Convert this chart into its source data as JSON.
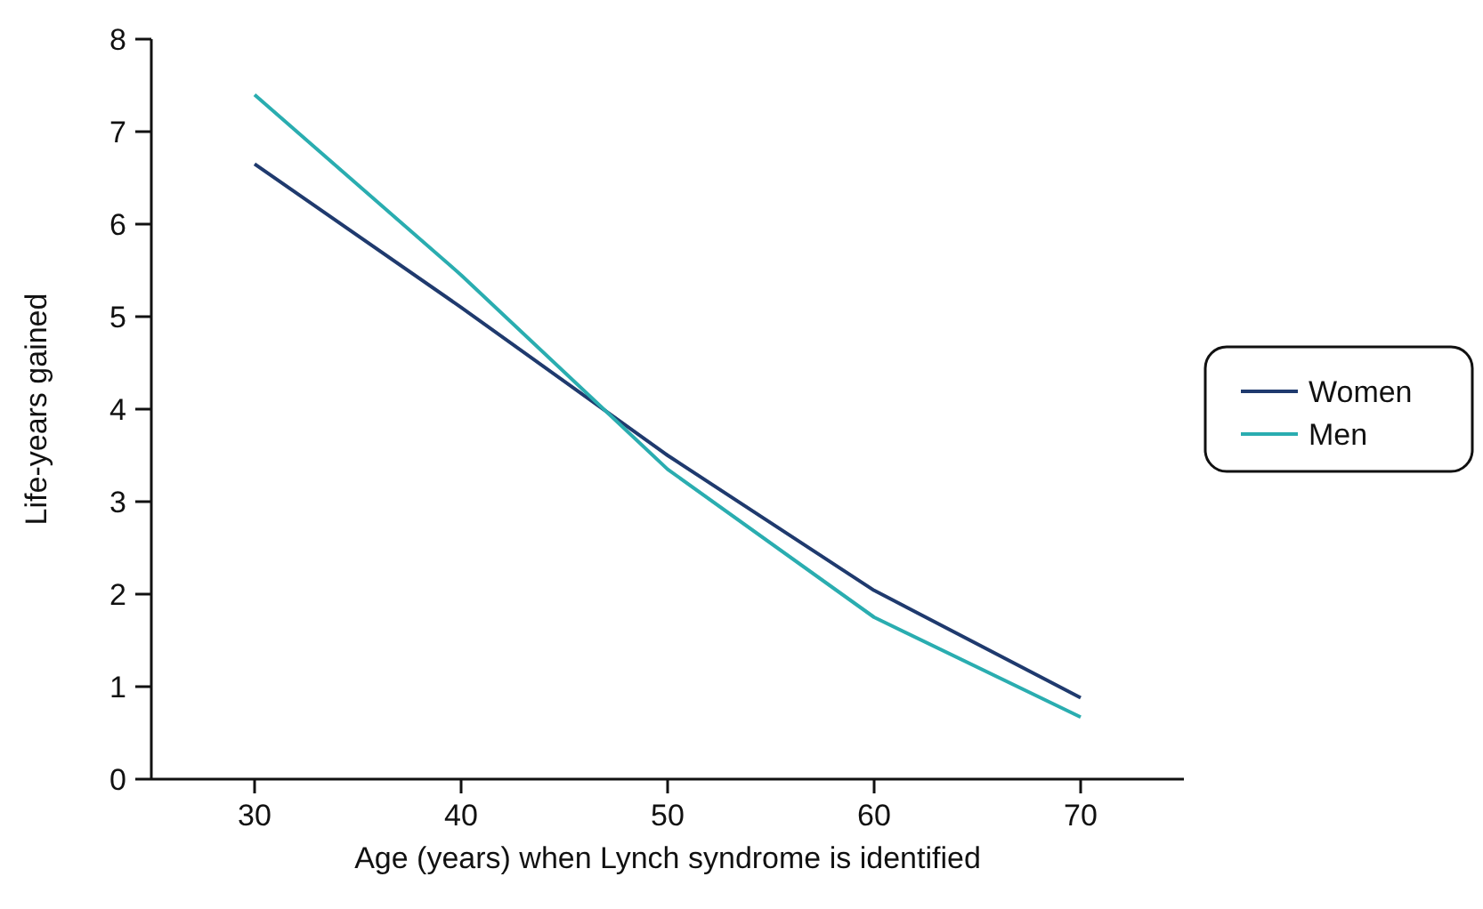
{
  "chart_data": {
    "type": "line",
    "xlabel": "Age (years) when Lynch syndrome is identified",
    "ylabel": "Life-years gained",
    "x": [
      30,
      40,
      50,
      60,
      70
    ],
    "series": [
      {
        "name": "Women",
        "color": "#1f3a6e",
        "values": [
          6.65,
          5.1,
          3.5,
          2.04,
          0.88
        ]
      },
      {
        "name": "Men",
        "color": "#2aadb0",
        "values": [
          7.4,
          5.45,
          3.35,
          1.75,
          0.67
        ]
      }
    ],
    "xlim": [
      25,
      75
    ],
    "xticks": [
      30,
      40,
      50,
      60,
      70
    ],
    "ylim": [
      0,
      8
    ],
    "yticks": [
      0,
      1,
      2,
      3,
      4,
      5,
      6,
      7,
      8
    ],
    "grid": false,
    "legend": "right",
    "marker": "none",
    "line_style": "solid"
  }
}
